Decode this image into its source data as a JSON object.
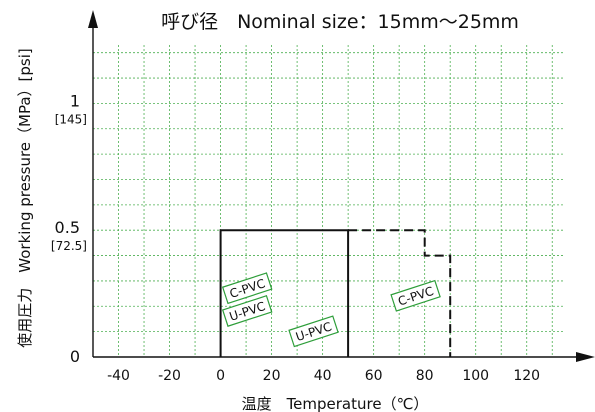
{
  "chart_data": {
    "type": "line",
    "title": "呼び径　Nominal size：15mm～25mm",
    "xlabel": "温度　Temperature（℃）",
    "ylabel": "使用圧力　Working pressure（MPa）[psi]",
    "xlim": [
      -50,
      135
    ],
    "ylim": [
      0,
      1.25
    ],
    "x_ticks": [
      {
        "value": -40,
        "label": "-40"
      },
      {
        "value": -20,
        "label": "-20"
      },
      {
        "value": 0,
        "label": "0"
      },
      {
        "value": 20,
        "label": "20"
      },
      {
        "value": 40,
        "label": "40"
      },
      {
        "value": 60,
        "label": "60"
      },
      {
        "value": 80,
        "label": "80"
      },
      {
        "value": 100,
        "label": "100"
      },
      {
        "value": 120,
        "label": "120"
      }
    ],
    "y_ticks": [
      {
        "value": 0,
        "label": "0",
        "sublabel": ""
      },
      {
        "value": 0.5,
        "label": "0.5",
        "sublabel": "[72.5]"
      },
      {
        "value": 1,
        "label": "1",
        "sublabel": "[145]"
      }
    ],
    "grid": true,
    "grid_x_step": 10,
    "grid_y_step": 0.1,
    "series": [
      {
        "name": "U-PVC",
        "style": "solid",
        "color": "#111111",
        "points": [
          [
            0,
            0
          ],
          [
            0,
            0.5
          ],
          [
            50,
            0.5
          ],
          [
            50,
            0
          ]
        ]
      },
      {
        "name": "C-PVC",
        "style": "dashed",
        "color": "#111111",
        "points": [
          [
            50,
            0.5
          ],
          [
            80,
            0.5
          ],
          [
            80,
            0.4
          ],
          [
            90,
            0.4
          ],
          [
            90,
            0
          ]
        ]
      }
    ],
    "annotations": [
      {
        "text": "C-PVC",
        "x": 2,
        "y": 0.25,
        "angle": -18
      },
      {
        "text": "U-PVC",
        "x": 2,
        "y": 0.16,
        "angle": -18
      },
      {
        "text": "U-PVC",
        "x": 28,
        "y": 0.08,
        "angle": -18
      },
      {
        "text": "C-PVC",
        "x": 68,
        "y": 0.22,
        "angle": -18
      }
    ],
    "colors": {
      "grid": "#4caf50",
      "axis": "#111111",
      "tag_border": "#2e9e3a"
    }
  }
}
